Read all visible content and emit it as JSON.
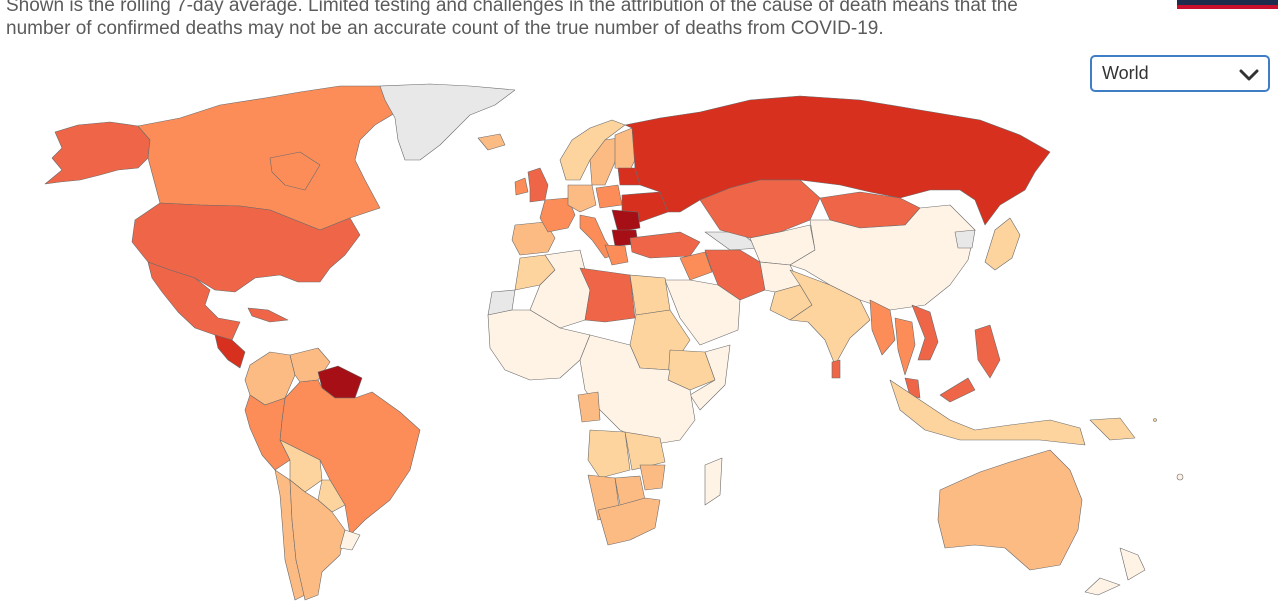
{
  "note": {
    "line1": "Shown is the rolling 7-day average. Limited testing and challenges in the attribution of the cause of death means that the",
    "line2": "number of confirmed deaths may not be an accurate count of the true number of deaths from COVID-19."
  },
  "region_select": {
    "value": "World",
    "icon": "chevron-down-icon"
  },
  "colors": {
    "very_high": "#a50f15",
    "high": "#d7301f",
    "med_high": "#ef6548",
    "medium": "#fc8d59",
    "low": "#fdbb84",
    "very_low": "#fdd49e",
    "minimal": "#fff3e6",
    "no_data": "#e8e8e8",
    "border": "#6b6b6b"
  },
  "countries": [
    {
      "name": "Alaska",
      "level": "med_high"
    },
    {
      "name": "Canada",
      "level": "medium"
    },
    {
      "name": "Greenland",
      "level": "no_data"
    },
    {
      "name": "United States",
      "level": "med_high"
    },
    {
      "name": "Mexico",
      "level": "med_high"
    },
    {
      "name": "Guatemala",
      "level": "high"
    },
    {
      "name": "Cuba",
      "level": "med_high"
    },
    {
      "name": "Colombia",
      "level": "low"
    },
    {
      "name": "Venezuela",
      "level": "low"
    },
    {
      "name": "Suriname",
      "level": "very_high"
    },
    {
      "name": "Brazil",
      "level": "medium"
    },
    {
      "name": "Peru",
      "level": "medium"
    },
    {
      "name": "Bolivia",
      "level": "very_low"
    },
    {
      "name": "Chile",
      "level": "low"
    },
    {
      "name": "Argentina",
      "level": "low"
    },
    {
      "name": "Paraguay",
      "level": "very_low"
    },
    {
      "name": "Uruguay",
      "level": "minimal"
    },
    {
      "name": "Iceland",
      "level": "low"
    },
    {
      "name": "United Kingdom",
      "level": "med_high"
    },
    {
      "name": "Ireland",
      "level": "medium"
    },
    {
      "name": "Norway",
      "level": "very_low"
    },
    {
      "name": "Sweden",
      "level": "low"
    },
    {
      "name": "Finland",
      "level": "low"
    },
    {
      "name": "Spain",
      "level": "low"
    },
    {
      "name": "France",
      "level": "medium"
    },
    {
      "name": "Germany",
      "level": "low"
    },
    {
      "name": "Italy",
      "level": "medium"
    },
    {
      "name": "Poland",
      "level": "medium"
    },
    {
      "name": "Baltic States",
      "level": "high"
    },
    {
      "name": "Ukraine",
      "level": "high"
    },
    {
      "name": "Romania",
      "level": "very_high"
    },
    {
      "name": "Bulgaria",
      "level": "very_high"
    },
    {
      "name": "Greece",
      "level": "medium"
    },
    {
      "name": "Turkey",
      "level": "med_high"
    },
    {
      "name": "Russia",
      "level": "high"
    },
    {
      "name": "Kazakhstan",
      "level": "med_high"
    },
    {
      "name": "Mongolia",
      "level": "med_high"
    },
    {
      "name": "China",
      "level": "minimal"
    },
    {
      "name": "Japan",
      "level": "very_low"
    },
    {
      "name": "North Korea",
      "level": "no_data"
    },
    {
      "name": "Iran",
      "level": "med_high"
    },
    {
      "name": "Iraq",
      "level": "medium"
    },
    {
      "name": "Saudi Arabia",
      "level": "minimal"
    },
    {
      "name": "Afghanistan",
      "level": "minimal"
    },
    {
      "name": "Pakistan",
      "level": "very_low"
    },
    {
      "name": "India",
      "level": "very_low"
    },
    {
      "name": "Sri Lanka",
      "level": "med_high"
    },
    {
      "name": "Myanmar",
      "level": "medium"
    },
    {
      "name": "Thailand",
      "level": "medium"
    },
    {
      "name": "Vietnam",
      "level": "med_high"
    },
    {
      "name": "Malaysia",
      "level": "med_high"
    },
    {
      "name": "Philippines",
      "level": "med_high"
    },
    {
      "name": "Indonesia",
      "level": "very_low"
    },
    {
      "name": "Papua New Guinea",
      "level": "very_low"
    },
    {
      "name": "Australia",
      "level": "low"
    },
    {
      "name": "New Zealand",
      "level": "minimal"
    },
    {
      "name": "Morocco",
      "level": "very_low"
    },
    {
      "name": "Western Sahara",
      "level": "no_data"
    },
    {
      "name": "Algeria",
      "level": "minimal"
    },
    {
      "name": "Libya",
      "level": "med_high"
    },
    {
      "name": "Egypt",
      "level": "very_low"
    },
    {
      "name": "Sudan",
      "level": "very_low"
    },
    {
      "name": "Ethiopia",
      "level": "very_low"
    },
    {
      "name": "Somalia",
      "level": "minimal"
    },
    {
      "name": "West Africa",
      "level": "minimal"
    },
    {
      "name": "Central Africa",
      "level": "minimal"
    },
    {
      "name": "Gabon",
      "level": "low"
    },
    {
      "name": "Angola",
      "level": "very_low"
    },
    {
      "name": "Zambia",
      "level": "very_low"
    },
    {
      "name": "Namibia",
      "level": "low"
    },
    {
      "name": "Botswana",
      "level": "low"
    },
    {
      "name": "Zimbabwe",
      "level": "low"
    },
    {
      "name": "South Africa",
      "level": "low"
    },
    {
      "name": "Madagascar",
      "level": "minimal"
    },
    {
      "name": "Central Asia",
      "level": "minimal"
    },
    {
      "name": "Caucasus",
      "level": "no_data"
    }
  ]
}
